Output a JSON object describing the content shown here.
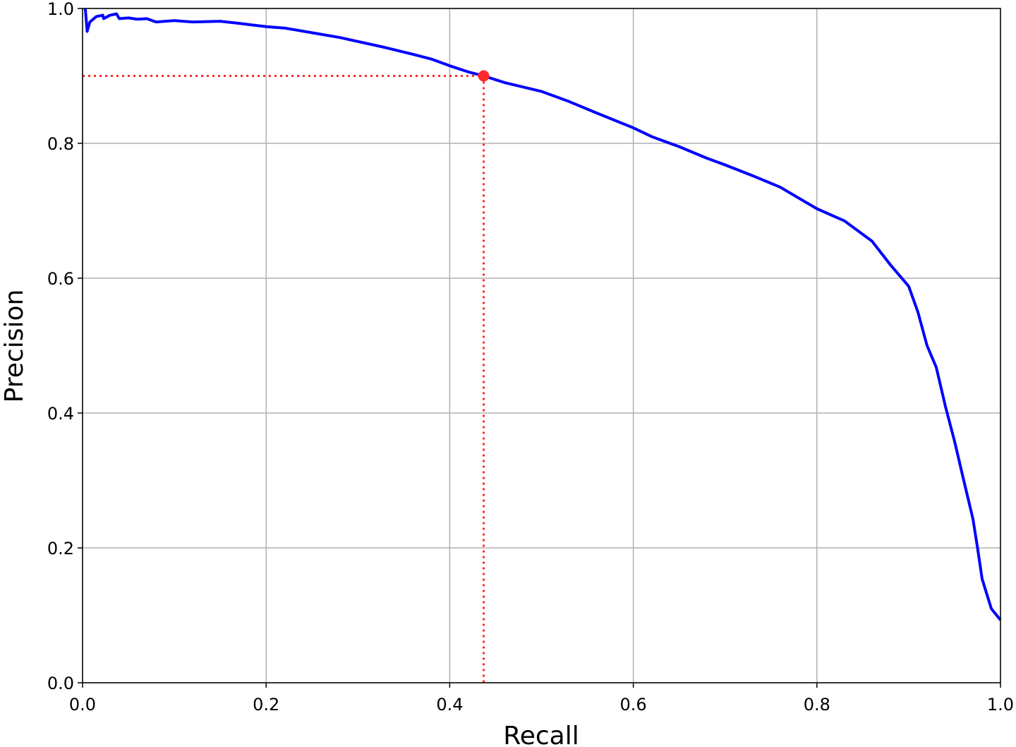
{
  "chart_data": {
    "type": "line",
    "xlabel": "Recall",
    "ylabel": "Precision",
    "xlim": [
      0,
      1
    ],
    "ylim": [
      0,
      1
    ],
    "xticks": [
      {
        "value": 0,
        "label": "0.0"
      },
      0.2,
      0.4,
      0.6,
      0.8,
      {
        "value": 1,
        "label": "1.0"
      }
    ],
    "yticks": [
      {
        "value": 0,
        "label": "0.0"
      },
      0.2,
      0.4,
      0.6,
      0.8,
      {
        "value": 1,
        "label": "1.0"
      }
    ],
    "grid": true,
    "series": [
      {
        "color": "#0000ff",
        "x": [
          0.003,
          0.005,
          0.008,
          0.015,
          0.022,
          0.023,
          0.03,
          0.037,
          0.04,
          0.05,
          0.06,
          0.07,
          0.08,
          0.1,
          0.12,
          0.15,
          0.17,
          0.2,
          0.22,
          0.25,
          0.28,
          0.3,
          0.33,
          0.36,
          0.38,
          0.4,
          0.42,
          0.437,
          0.46,
          0.5,
          0.53,
          0.56,
          0.6,
          0.62,
          0.65,
          0.68,
          0.7,
          0.73,
          0.76,
          0.8,
          0.83,
          0.86,
          0.88,
          0.9,
          0.91,
          0.92,
          0.93,
          0.94,
          0.95,
          0.96,
          0.97,
          0.975,
          0.98,
          0.99,
          1.0
        ],
        "values": [
          1.0,
          0.966,
          0.98,
          0.988,
          0.99,
          0.985,
          0.99,
          0.992,
          0.985,
          0.986,
          0.984,
          0.985,
          0.98,
          0.982,
          0.98,
          0.981,
          0.978,
          0.973,
          0.971,
          0.964,
          0.957,
          0.951,
          0.942,
          0.932,
          0.925,
          0.915,
          0.906,
          0.9,
          0.89,
          0.877,
          0.862,
          0.845,
          0.823,
          0.81,
          0.795,
          0.778,
          0.768,
          0.752,
          0.735,
          0.703,
          0.685,
          0.655,
          0.62,
          0.588,
          0.55,
          0.5,
          0.468,
          0.41,
          0.358,
          0.3,
          0.243,
          0.2,
          0.154,
          0.11,
          0.093
        ]
      }
    ],
    "marker": {
      "x": 0.437,
      "y": 0.9,
      "color": "#ff2a2a"
    }
  }
}
